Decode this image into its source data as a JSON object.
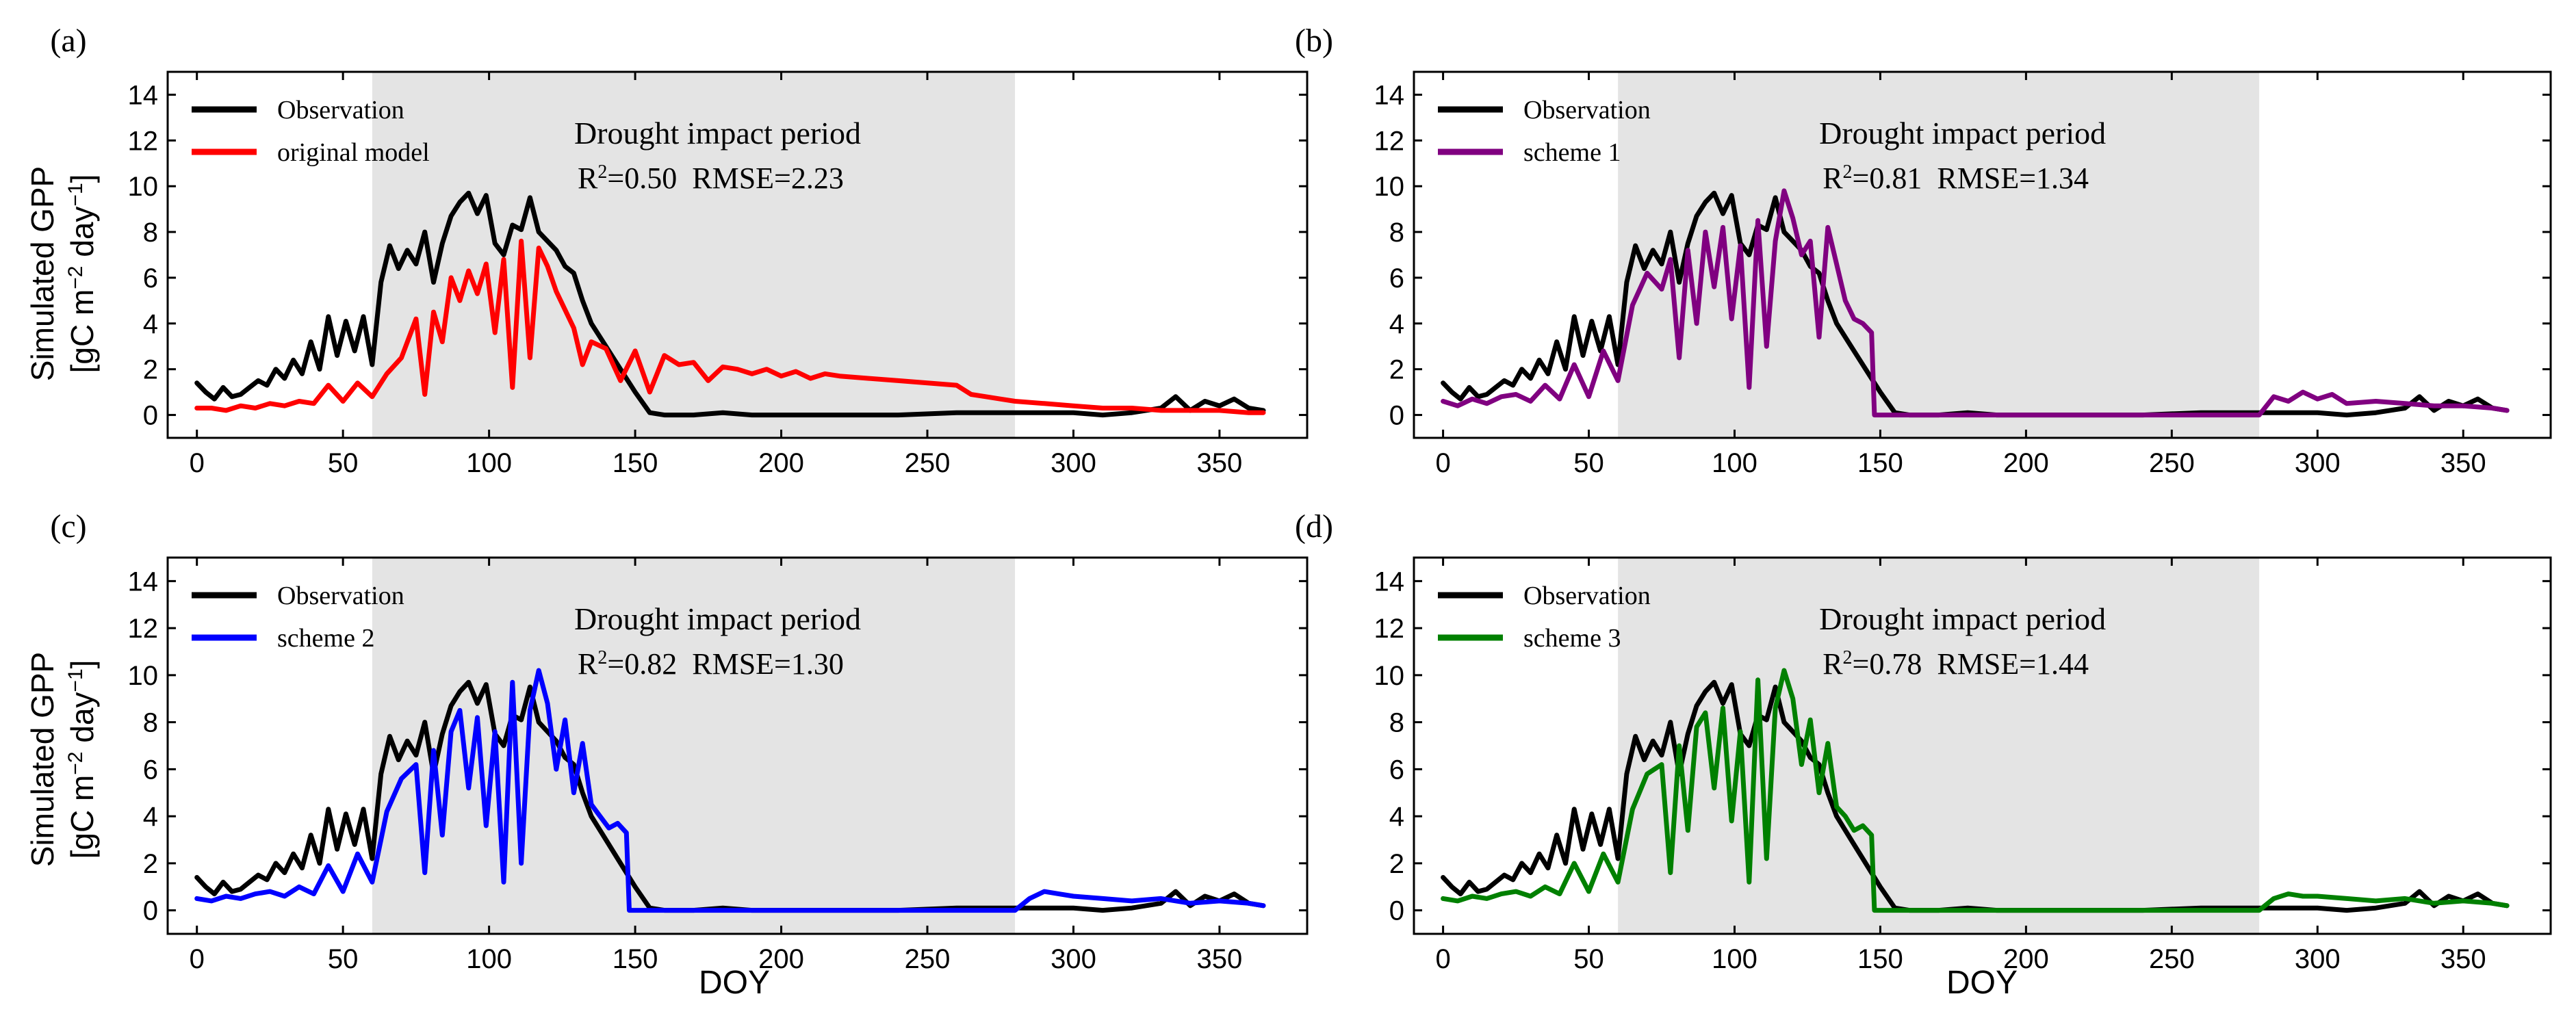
{
  "figure": {
    "xlabel": "DOY",
    "ylabel_line1": "Simulated GPP",
    "ylabel_line2_prefix": "[gC m",
    "ylabel_sup1": "−2",
    "ylabel_mid": " day",
    "ylabel_sup2": "−1",
    "ylabel_suffix": "]",
    "shade_label": "Drought impact period",
    "shade_range": [
      60,
      280
    ],
    "xlim": [
      -10,
      380
    ],
    "ylim": [
      -1,
      15
    ],
    "xticks": [
      0,
      50,
      100,
      150,
      200,
      250,
      300,
      350
    ],
    "yticks": [
      0,
      2,
      4,
      6,
      8,
      10,
      12,
      14
    ],
    "observation_color": "#000000",
    "shade_color": "#e4e4e4"
  },
  "chart_data": [
    {
      "type": "line",
      "panel": "(a)",
      "series": [
        {
          "name": "Observation",
          "color": "#000000"
        },
        {
          "name": "original model",
          "color": "#ff0000"
        }
      ],
      "stats": {
        "r2_label": "R",
        "r2_sup": "2",
        "r2_value": "=0.50",
        "rmse": "RMSE=2.23"
      }
    },
    {
      "type": "line",
      "panel": "(b)",
      "series": [
        {
          "name": "Observation",
          "color": "#000000"
        },
        {
          "name": "scheme 1",
          "color": "#800080"
        }
      ],
      "stats": {
        "r2_label": "R",
        "r2_sup": "2",
        "r2_value": "=0.81",
        "rmse": "RMSE=1.34"
      }
    },
    {
      "type": "line",
      "panel": "(c)",
      "series": [
        {
          "name": "Observation",
          "color": "#000000"
        },
        {
          "name": "scheme 2",
          "color": "#0000ff"
        }
      ],
      "stats": {
        "r2_label": "R",
        "r2_sup": "2",
        "r2_value": "=0.82",
        "rmse": "RMSE=1.30"
      }
    },
    {
      "type": "line",
      "panel": "(d)",
      "series": [
        {
          "name": "Observation",
          "color": "#000000"
        },
        {
          "name": "scheme 3",
          "color": "#008000"
        }
      ],
      "stats": {
        "r2_label": "R",
        "r2_sup": "2",
        "r2_value": "=0.78",
        "rmse": "RMSE=1.44"
      }
    }
  ],
  "observation_series": {
    "name": "Observation",
    "x": [
      0,
      3,
      6,
      9,
      12,
      15,
      18,
      21,
      24,
      27,
      30,
      33,
      36,
      39,
      42,
      45,
      48,
      51,
      54,
      57,
      60,
      63,
      66,
      69,
      72,
      75,
      78,
      81,
      84,
      87,
      90,
      93,
      96,
      99,
      102,
      105,
      108,
      111,
      114,
      117,
      120,
      123,
      126,
      129,
      132,
      135,
      140,
      145,
      150,
      155,
      160,
      170,
      180,
      190,
      200,
      220,
      240,
      260,
      280,
      300,
      310,
      320,
      330,
      335,
      340,
      345,
      350,
      355,
      360,
      365
    ],
    "values": [
      1.4,
      1.0,
      0.7,
      1.2,
      0.8,
      0.9,
      1.2,
      1.5,
      1.3,
      2.0,
      1.6,
      2.4,
      1.8,
      3.2,
      2.0,
      4.3,
      2.6,
      4.1,
      2.8,
      4.3,
      2.2,
      5.8,
      7.4,
      6.4,
      7.2,
      6.6,
      8.0,
      5.8,
      7.5,
      8.7,
      9.3,
      9.7,
      8.8,
      9.6,
      7.5,
      7.0,
      8.3,
      8.1,
      9.5,
      8.0,
      7.6,
      7.2,
      6.5,
      6.2,
      5.0,
      4.0,
      3.0,
      2.0,
      1.0,
      0.1,
      0.0,
      0.0,
      0.1,
      0.0,
      0.0,
      0.0,
      0.0,
      0.1,
      0.1,
      0.1,
      0.0,
      0.1,
      0.3,
      0.8,
      0.2,
      0.6,
      0.4,
      0.7,
      0.3,
      0.2
    ]
  },
  "model_series": [
    {
      "name": "original model",
      "x": [
        0,
        5,
        10,
        15,
        20,
        25,
        30,
        35,
        40,
        45,
        50,
        55,
        60,
        65,
        70,
        75,
        78,
        81,
        84,
        87,
        90,
        93,
        96,
        99,
        102,
        105,
        108,
        111,
        114,
        117,
        120,
        123,
        126,
        129,
        132,
        135,
        140,
        145,
        150,
        155,
        160,
        165,
        170,
        175,
        180,
        185,
        190,
        195,
        200,
        205,
        210,
        215,
        220,
        230,
        240,
        250,
        260,
        265,
        270,
        275,
        280,
        290,
        300,
        310,
        320,
        330,
        340,
        350,
        360,
        365
      ],
      "values": [
        0.3,
        0.3,
        0.2,
        0.4,
        0.3,
        0.5,
        0.4,
        0.6,
        0.5,
        1.3,
        0.6,
        1.4,
        0.8,
        1.8,
        2.5,
        4.2,
        0.9,
        4.5,
        3.2,
        6.0,
        5.0,
        6.3,
        5.3,
        6.6,
        3.6,
        6.8,
        1.2,
        7.6,
        2.5,
        7.3,
        6.5,
        5.4,
        4.6,
        3.8,
        2.2,
        3.2,
        2.9,
        1.5,
        2.8,
        1.0,
        2.6,
        2.2,
        2.3,
        1.5,
        2.1,
        2.0,
        1.8,
        2.0,
        1.7,
        1.9,
        1.6,
        1.8,
        1.7,
        1.6,
        1.5,
        1.4,
        1.3,
        0.9,
        0.8,
        0.7,
        0.6,
        0.5,
        0.4,
        0.3,
        0.3,
        0.2,
        0.2,
        0.2,
        0.1,
        0.1
      ]
    },
    {
      "name": "scheme 1",
      "x": [
        0,
        5,
        10,
        15,
        20,
        25,
        30,
        35,
        40,
        45,
        50,
        55,
        60,
        65,
        70,
        75,
        78,
        81,
        84,
        87,
        90,
        93,
        96,
        99,
        102,
        105,
        108,
        111,
        114,
        117,
        120,
        123,
        126,
        129,
        132,
        135,
        138,
        141,
        144,
        147,
        148,
        150,
        160,
        200,
        250,
        280,
        285,
        290,
        295,
        300,
        305,
        310,
        320,
        330,
        340,
        350,
        360,
        365
      ],
      "values": [
        0.6,
        0.4,
        0.7,
        0.5,
        0.8,
        0.9,
        0.6,
        1.3,
        0.7,
        2.2,
        0.8,
        2.8,
        1.5,
        4.8,
        6.2,
        5.5,
        6.8,
        2.5,
        7.2,
        4.0,
        8.0,
        5.6,
        8.2,
        4.2,
        7.4,
        1.2,
        8.5,
        3.0,
        7.6,
        9.8,
        8.6,
        7.0,
        7.6,
        3.4,
        8.2,
        6.6,
        5.0,
        4.2,
        4.0,
        3.6,
        0.0,
        0.0,
        0.0,
        0.0,
        0.0,
        0.0,
        0.8,
        0.6,
        1.0,
        0.7,
        0.9,
        0.5,
        0.6,
        0.5,
        0.4,
        0.4,
        0.3,
        0.2
      ]
    },
    {
      "name": "scheme 2",
      "x": [
        0,
        5,
        10,
        15,
        20,
        25,
        30,
        35,
        40,
        45,
        50,
        55,
        60,
        65,
        70,
        75,
        78,
        81,
        84,
        87,
        90,
        93,
        96,
        99,
        102,
        105,
        108,
        111,
        114,
        117,
        120,
        123,
        126,
        129,
        132,
        135,
        138,
        141,
        144,
        147,
        148,
        150,
        160,
        200,
        250,
        280,
        285,
        290,
        295,
        300,
        310,
        320,
        330,
        340,
        350,
        360,
        365
      ],
      "values": [
        0.5,
        0.4,
        0.6,
        0.5,
        0.7,
        0.8,
        0.6,
        1.0,
        0.7,
        1.9,
        0.8,
        2.4,
        1.2,
        4.2,
        5.6,
        6.2,
        1.6,
        6.8,
        3.2,
        7.6,
        8.5,
        5.2,
        8.2,
        3.6,
        7.6,
        1.2,
        9.7,
        2.0,
        8.5,
        10.2,
        8.8,
        6.0,
        8.1,
        5.0,
        7.1,
        4.5,
        4.0,
        3.5,
        3.7,
        3.3,
        0.0,
        0.0,
        0.0,
        0.0,
        0.0,
        0.0,
        0.5,
        0.8,
        0.7,
        0.6,
        0.5,
        0.4,
        0.5,
        0.3,
        0.4,
        0.3,
        0.2
      ]
    },
    {
      "name": "scheme 3",
      "x": [
        0,
        5,
        10,
        15,
        20,
        25,
        30,
        35,
        40,
        45,
        50,
        55,
        60,
        65,
        70,
        75,
        78,
        81,
        84,
        87,
        90,
        93,
        96,
        99,
        102,
        105,
        108,
        111,
        114,
        117,
        120,
        123,
        126,
        129,
        132,
        135,
        138,
        141,
        144,
        147,
        148,
        150,
        160,
        200,
        250,
        280,
        285,
        290,
        295,
        300,
        310,
        320,
        330,
        340,
        350,
        360,
        365
      ],
      "values": [
        0.5,
        0.4,
        0.6,
        0.5,
        0.7,
        0.8,
        0.6,
        1.0,
        0.7,
        2.0,
        0.8,
        2.4,
        1.2,
        4.3,
        5.8,
        6.2,
        1.6,
        7.0,
        3.4,
        7.8,
        8.4,
        5.2,
        8.6,
        3.8,
        7.6,
        1.2,
        9.8,
        2.2,
        8.6,
        10.2,
        9.0,
        6.2,
        8.1,
        5.0,
        7.1,
        4.4,
        4.0,
        3.4,
        3.6,
        3.2,
        0.0,
        0.0,
        0.0,
        0.0,
        0.0,
        0.0,
        0.5,
        0.7,
        0.6,
        0.6,
        0.5,
        0.4,
        0.5,
        0.3,
        0.4,
        0.3,
        0.2
      ]
    }
  ]
}
